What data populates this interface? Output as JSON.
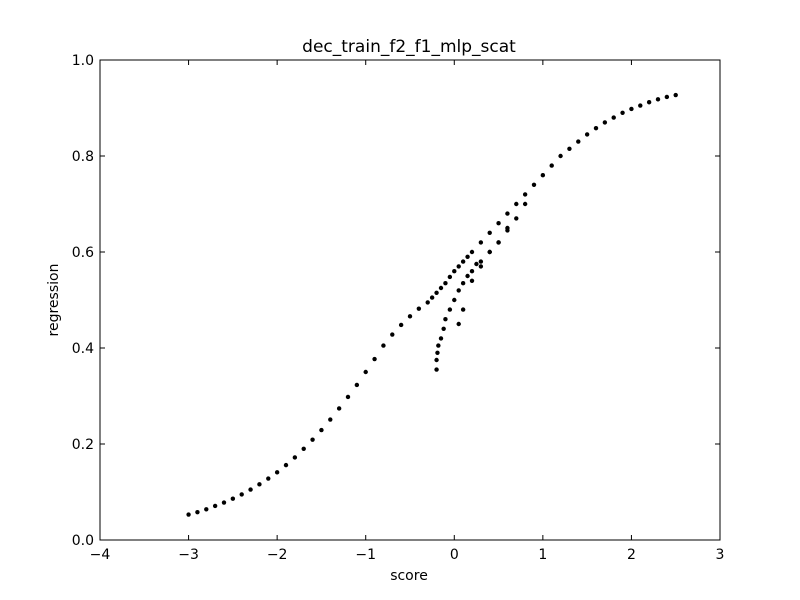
{
  "chart_data": {
    "type": "scatter",
    "title": "dec_train_f2_f1_mlp_scat",
    "xlabel": "score",
    "ylabel": "regression",
    "xlim": [
      -4,
      3
    ],
    "ylim": [
      0.0,
      1.0
    ],
    "xticks": [
      "−4",
      "−3",
      "−2",
      "−1",
      "0",
      "1",
      "2",
      "3"
    ],
    "xtick_values": [
      -4,
      -3,
      -2,
      -1,
      0,
      1,
      2,
      3
    ],
    "yticks": [
      "0.0",
      "0.2",
      "0.4",
      "0.6",
      "0.8",
      "1.0"
    ],
    "ytick_values": [
      0.0,
      0.2,
      0.4,
      0.6,
      0.8,
      1.0
    ],
    "grid": false,
    "marker_color": "#000000",
    "series": [
      {
        "x": [
          -3.0,
          -2.9,
          -2.8,
          -2.7,
          -2.6,
          -2.5,
          -2.4,
          -2.3,
          -2.2,
          -2.1,
          -2.0,
          -1.9,
          -1.8,
          -1.7,
          -1.6,
          -1.5,
          -1.4,
          -1.3,
          -1.2,
          -1.1,
          -1.0,
          -0.9,
          -0.8,
          -0.7,
          -0.6,
          -0.5,
          -0.4,
          -0.3,
          -0.25,
          -0.2,
          -0.15,
          -0.1,
          -0.05,
          0.0,
          0.05,
          0.1,
          0.15,
          0.2,
          0.3,
          0.4,
          0.5,
          0.6,
          0.7,
          0.8,
          0.9,
          1.0,
          1.1,
          1.2,
          1.3,
          1.4,
          1.5,
          1.6,
          1.7,
          1.8,
          1.9,
          2.0,
          2.1,
          2.2,
          2.3,
          2.4,
          2.5,
          -0.2,
          -0.2,
          -0.19,
          -0.18,
          -0.15,
          -0.12,
          -0.1,
          -0.05,
          0.0,
          0.05,
          0.1,
          0.15,
          0.2,
          0.25,
          0.3,
          0.4,
          0.5,
          0.6,
          0.7,
          0.8,
          0.2,
          0.3,
          0.4,
          0.5,
          0.6,
          0.05,
          0.1
        ],
        "y": [
          0.053,
          0.058,
          0.064,
          0.071,
          0.078,
          0.086,
          0.095,
          0.105,
          0.116,
          0.128,
          0.141,
          0.156,
          0.172,
          0.19,
          0.209,
          0.229,
          0.251,
          0.274,
          0.298,
          0.323,
          0.35,
          0.377,
          0.405,
          0.428,
          0.448,
          0.466,
          0.482,
          0.495,
          0.505,
          0.515,
          0.525,
          0.535,
          0.548,
          0.56,
          0.57,
          0.58,
          0.59,
          0.6,
          0.62,
          0.64,
          0.66,
          0.68,
          0.7,
          0.72,
          0.74,
          0.76,
          0.78,
          0.8,
          0.815,
          0.83,
          0.845,
          0.858,
          0.87,
          0.88,
          0.89,
          0.898,
          0.905,
          0.912,
          0.918,
          0.923,
          0.927,
          0.355,
          0.375,
          0.39,
          0.405,
          0.42,
          0.44,
          0.46,
          0.48,
          0.5,
          0.52,
          0.535,
          0.55,
          0.56,
          0.575,
          0.58,
          0.6,
          0.62,
          0.645,
          0.67,
          0.7,
          0.54,
          0.57,
          0.6,
          0.62,
          0.65,
          0.45,
          0.48
        ]
      }
    ]
  }
}
